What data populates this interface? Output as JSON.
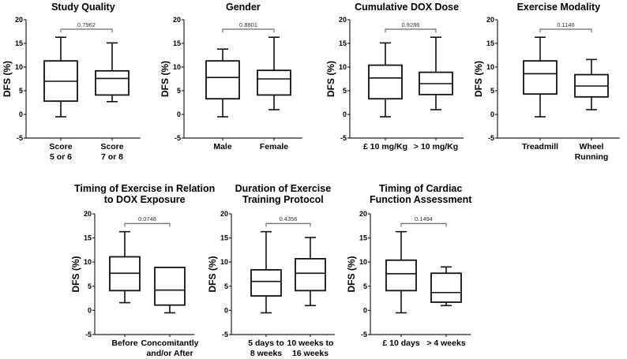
{
  "chart_data": [
    {
      "type": "box",
      "title": [
        "Study Quality"
      ],
      "ylabel": "DFS (%)",
      "ylim": [
        -5,
        20
      ],
      "yticks": [
        20,
        15,
        10,
        5,
        0,
        -5
      ],
      "p_value": "0.7962",
      "categories": [
        [
          "Score",
          "5 or 6"
        ],
        [
          "Score",
          "7 or 8"
        ]
      ],
      "series": [
        {
          "min": -0.5,
          "q1": 2.8,
          "median": 7.0,
          "q3": 11.3,
          "max": 16.3
        },
        {
          "min": 2.7,
          "q1": 4.1,
          "median": 7.6,
          "q3": 9.2,
          "max": 15.1
        }
      ]
    },
    {
      "type": "box",
      "title": [
        "Gender"
      ],
      "ylabel": "DFS (%)",
      "ylim": [
        -5,
        20
      ],
      "yticks": [
        20,
        15,
        10,
        5,
        0,
        -5
      ],
      "p_value": "0.8801",
      "categories": [
        [
          "Male"
        ],
        [
          "Female"
        ]
      ],
      "series": [
        {
          "min": -0.5,
          "q1": 3.3,
          "median": 7.8,
          "q3": 11.3,
          "max": 13.8
        },
        {
          "min": 1.0,
          "q1": 4.1,
          "median": 7.5,
          "q3": 9.3,
          "max": 16.3
        }
      ]
    },
    {
      "type": "box",
      "title": [
        "Cumulative DOX Dose"
      ],
      "ylabel": "DFS (%)",
      "ylim": [
        -5,
        20
      ],
      "yticks": [
        20,
        15,
        10,
        5,
        0,
        -5
      ],
      "p_value": "0.9286",
      "categories": [
        [
          "£ 10 mg/Kg"
        ],
        [
          "> 10 mg/Kg"
        ]
      ],
      "series": [
        {
          "min": -0.5,
          "q1": 3.3,
          "median": 7.7,
          "q3": 10.4,
          "max": 15.1
        },
        {
          "min": 1.0,
          "q1": 4.2,
          "median": 6.5,
          "q3": 8.9,
          "max": 16.3
        }
      ]
    },
    {
      "type": "box",
      "title": [
        "Exercise Modality"
      ],
      "ylabel": "DFS (%)",
      "ylim": [
        -5,
        20
      ],
      "yticks": [
        20,
        15,
        10,
        5,
        0,
        -5
      ],
      "p_value": "0.1146",
      "categories": [
        [
          "Treadmill"
        ],
        [
          "Wheel",
          "Running"
        ]
      ],
      "series": [
        {
          "min": -0.5,
          "q1": 4.3,
          "median": 8.6,
          "q3": 11.3,
          "max": 16.3
        },
        {
          "min": 1.0,
          "q1": 3.7,
          "median": 6.0,
          "q3": 8.4,
          "max": 11.6
        }
      ]
    },
    {
      "type": "box",
      "title": [
        "Timing of Exercise in Relation",
        "to DOX Exposure"
      ],
      "ylabel": "DFS (%)",
      "ylim": [
        -5,
        20
      ],
      "yticks": [
        20,
        15,
        10,
        5,
        0,
        -5
      ],
      "p_value": "0.0748",
      "categories": [
        [
          "Before"
        ],
        [
          "Concomitantly",
          "and/or After"
        ]
      ],
      "series": [
        {
          "min": 1.6,
          "q1": 4.1,
          "median": 7.7,
          "q3": 11.1,
          "max": 16.3
        },
        {
          "min": -0.5,
          "q1": 1.1,
          "median": 4.2,
          "q3": 8.9,
          "max": 8.9
        }
      ]
    },
    {
      "type": "box",
      "title": [
        "Duration of Exercise",
        "Training Protocol"
      ],
      "ylabel": "DFS (%)",
      "ylim": [
        -5,
        20
      ],
      "yticks": [
        20,
        15,
        10,
        5,
        0,
        -5
      ],
      "p_value": "0.4356",
      "categories": [
        [
          "5 days to",
          "8 weeks"
        ],
        [
          "10 weeks to",
          "16 weeks"
        ]
      ],
      "series": [
        {
          "min": -0.5,
          "q1": 3.0,
          "median": 6.0,
          "q3": 8.4,
          "max": 16.3
        },
        {
          "min": 1.0,
          "q1": 4.1,
          "median": 7.7,
          "q3": 10.7,
          "max": 15.1
        }
      ]
    },
    {
      "type": "box",
      "title": [
        "Timing of Cardiac",
        "Function Assessment"
      ],
      "ylabel": "DFS (%)",
      "ylim": [
        -5,
        20
      ],
      "yticks": [
        20,
        15,
        10,
        5,
        0,
        -5
      ],
      "p_value": "0.1494",
      "categories": [
        [
          "£ 10 days"
        ],
        [
          "> 4 weeks"
        ]
      ],
      "series": [
        {
          "min": -0.5,
          "q1": 4.1,
          "median": 7.6,
          "q3": 10.4,
          "max": 16.3
        },
        {
          "min": 1.0,
          "q1": 1.7,
          "median": 3.7,
          "q3": 7.7,
          "max": 9.0
        }
      ]
    }
  ]
}
